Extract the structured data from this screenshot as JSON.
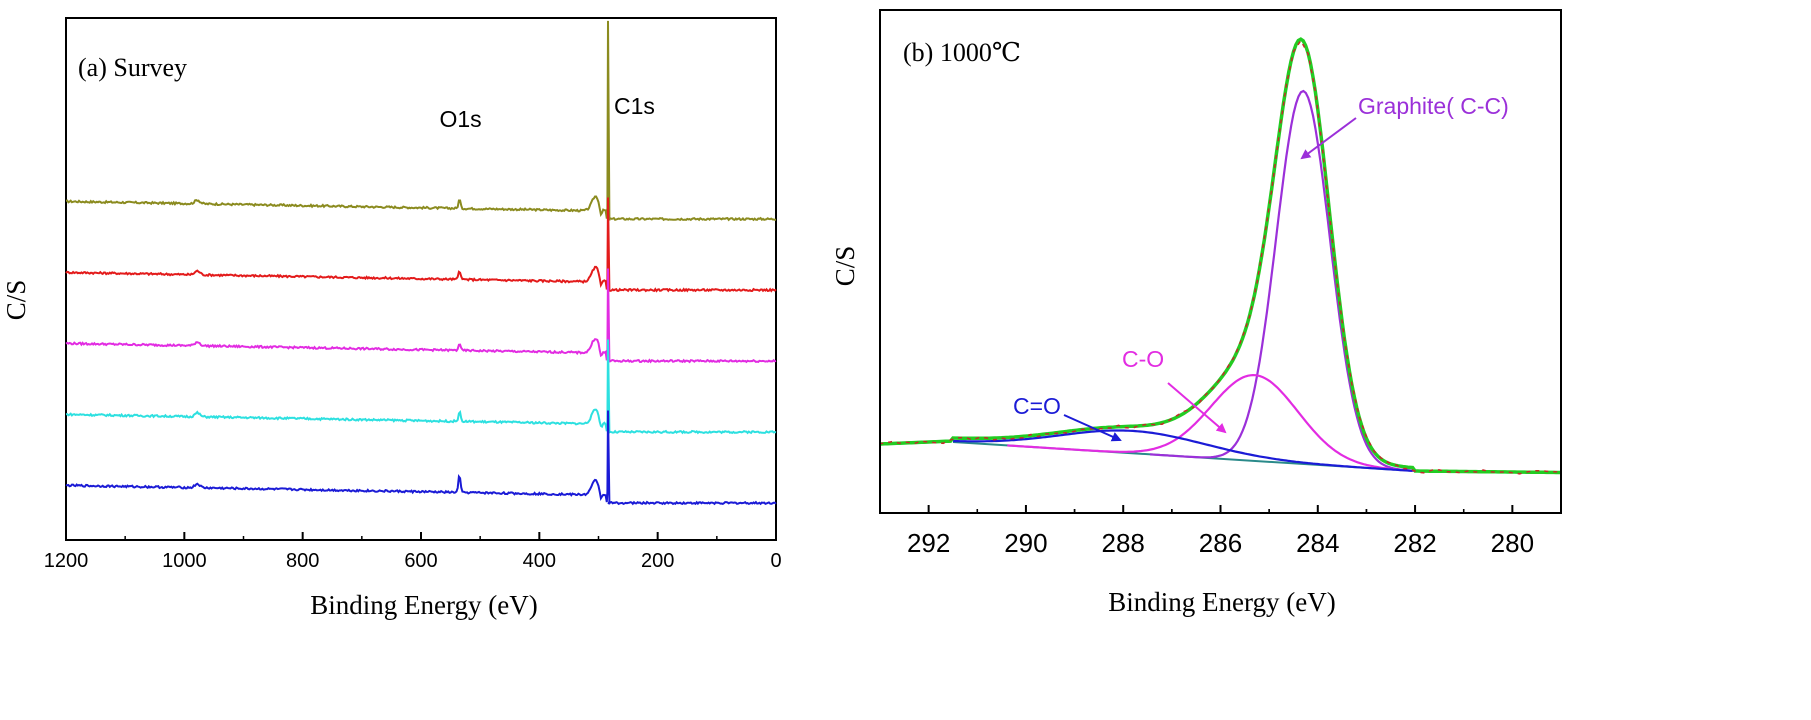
{
  "chart_data": [
    {
      "type": "line",
      "panel_label": "(a) Survey",
      "xlabel": "Binding Energy (eV)",
      "ylabel": "C/S",
      "xlim": [
        1200,
        0
      ],
      "x_reversed": true,
      "x_ticks": [
        1200,
        1000,
        800,
        600,
        400,
        200,
        0
      ],
      "y_ticks_shown": false,
      "annotations": [
        {
          "text": "O1s",
          "x": 535
        },
        {
          "text": "C1s",
          "x": 284
        }
      ],
      "series": [
        {
          "name": "olive",
          "color": "#8b8b1f",
          "offset": 4,
          "o1s_height": 0.28,
          "c1s_height": 2.4
        },
        {
          "name": "red",
          "color": "#e31b1b",
          "offset": 3,
          "o1s_height": 0.28,
          "c1s_height": 0.9
        },
        {
          "name": "magenta",
          "color": "#e22ce2",
          "offset": 2,
          "o1s_height": 0.22,
          "c1s_height": 0.9
        },
        {
          "name": "cyan",
          "color": "#2de0e0",
          "offset": 1,
          "o1s_height": 0.32,
          "c1s_height": 0.9
        },
        {
          "name": "blue",
          "color": "#1b1bd6",
          "offset": 0,
          "o1s_height": 0.55,
          "c1s_height": 0.9
        }
      ]
    },
    {
      "type": "line",
      "panel_label": "(b) 1000℃",
      "xlabel": "Binding Energy (eV)",
      "ylabel": "C/S",
      "xlim": [
        293,
        279
      ],
      "x_reversed": true,
      "x_ticks": [
        292,
        290,
        288,
        286,
        284,
        282,
        280
      ],
      "y_ticks_shown": false,
      "annotations": [
        {
          "text": "Graphite( C-C)",
          "color": "#9b30d9"
        },
        {
          "text": "C-O",
          "color": "#e22ce2"
        },
        {
          "text": "C=O",
          "color": "#1b1bd6"
        }
      ],
      "series": [
        {
          "name": "Graphite( C-C)",
          "color": "#9b30d9",
          "center": 284.3,
          "height": 1.0,
          "fwhm": 1.3
        },
        {
          "name": "C-O",
          "color": "#e22ce2",
          "center": 285.3,
          "height": 0.23,
          "fwhm": 2.1
        },
        {
          "name": "C=O",
          "color": "#1b1bd6",
          "center": 287.8,
          "height": 0.06,
          "fwhm": 3.5
        },
        {
          "name": "envelope",
          "color": "#22cc22"
        },
        {
          "name": "raw",
          "color": "#c62828"
        },
        {
          "name": "background",
          "color": "#2a8a8a"
        }
      ]
    }
  ]
}
